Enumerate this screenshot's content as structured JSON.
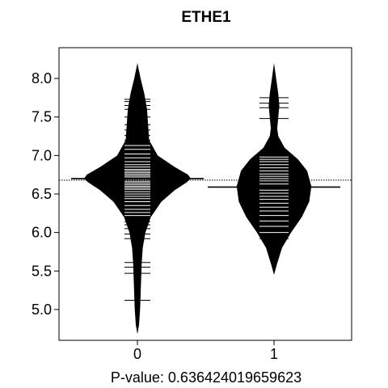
{
  "chart_data": {
    "type": "beanplot",
    "title": "ETHE1",
    "xlabel": "P-value: 0.636424019659623",
    "ylabel": "",
    "categories": [
      "0",
      "1"
    ],
    "ylim": [
      4.6,
      8.4
    ],
    "yticks": [
      5.0,
      5.5,
      6.0,
      6.5,
      7.0,
      7.5,
      8.0
    ],
    "ytick_labels": [
      "5.0",
      "5.5",
      "6.0",
      "6.5",
      "7.0",
      "7.5",
      "8.0"
    ],
    "overall_mean": 6.68,
    "grid": false,
    "fill_color": "#000000",
    "line_color": "#ffffff",
    "groups": [
      {
        "category": "0",
        "mean": 6.7,
        "density": [
          [
            4.68,
            0.0
          ],
          [
            4.8,
            0.03
          ],
          [
            5.0,
            0.05
          ],
          [
            5.2,
            0.06
          ],
          [
            5.4,
            0.07
          ],
          [
            5.6,
            0.08
          ],
          [
            5.8,
            0.1
          ],
          [
            6.0,
            0.15
          ],
          [
            6.2,
            0.25
          ],
          [
            6.4,
            0.45
          ],
          [
            6.55,
            0.7
          ],
          [
            6.65,
            0.92
          ],
          [
            6.7,
            1.0
          ],
          [
            6.75,
            0.95
          ],
          [
            6.85,
            0.7
          ],
          [
            7.0,
            0.38
          ],
          [
            7.2,
            0.22
          ],
          [
            7.4,
            0.2
          ],
          [
            7.6,
            0.18
          ],
          [
            7.8,
            0.13
          ],
          [
            8.0,
            0.06
          ],
          [
            8.1,
            0.03
          ],
          [
            8.2,
            0.0
          ]
        ],
        "observations": [
          5.12,
          5.47,
          5.55,
          5.61,
          5.92,
          5.98,
          6.05,
          6.1,
          6.14,
          6.18,
          6.22,
          6.26,
          6.3,
          6.35,
          6.4,
          6.44,
          6.47,
          6.5,
          6.53,
          6.56,
          6.58,
          6.6,
          6.62,
          6.64,
          6.66,
          6.68,
          6.7,
          6.72,
          6.74,
          6.76,
          6.78,
          6.8,
          6.82,
          6.85,
          6.88,
          6.92,
          6.97,
          7.02,
          7.08,
          7.13,
          7.2,
          7.26,
          7.33,
          7.4,
          7.5,
          7.6,
          7.65,
          7.7,
          7.73
        ]
      },
      {
        "category": "1",
        "mean": 6.59,
        "density": [
          [
            5.45,
            0.0
          ],
          [
            5.6,
            0.06
          ],
          [
            5.8,
            0.15
          ],
          [
            6.0,
            0.32
          ],
          [
            6.2,
            0.52
          ],
          [
            6.4,
            0.66
          ],
          [
            6.6,
            0.7
          ],
          [
            6.8,
            0.62
          ],
          [
            6.95,
            0.45
          ],
          [
            7.1,
            0.2
          ],
          [
            7.25,
            0.08
          ],
          [
            7.35,
            0.06
          ],
          [
            7.5,
            0.08
          ],
          [
            7.65,
            0.1
          ],
          [
            7.8,
            0.08
          ],
          [
            8.0,
            0.04
          ],
          [
            8.2,
            0.0
          ]
        ],
        "observations": [
          5.92,
          6.0,
          6.08,
          6.15,
          6.22,
          6.28,
          6.33,
          6.38,
          6.43,
          6.47,
          6.51,
          6.55,
          6.59,
          6.63,
          6.67,
          6.7,
          6.73,
          6.76,
          6.8,
          6.84,
          6.88,
          6.92,
          6.95,
          6.98,
          7.48,
          7.62,
          7.68,
          7.75
        ]
      }
    ]
  }
}
